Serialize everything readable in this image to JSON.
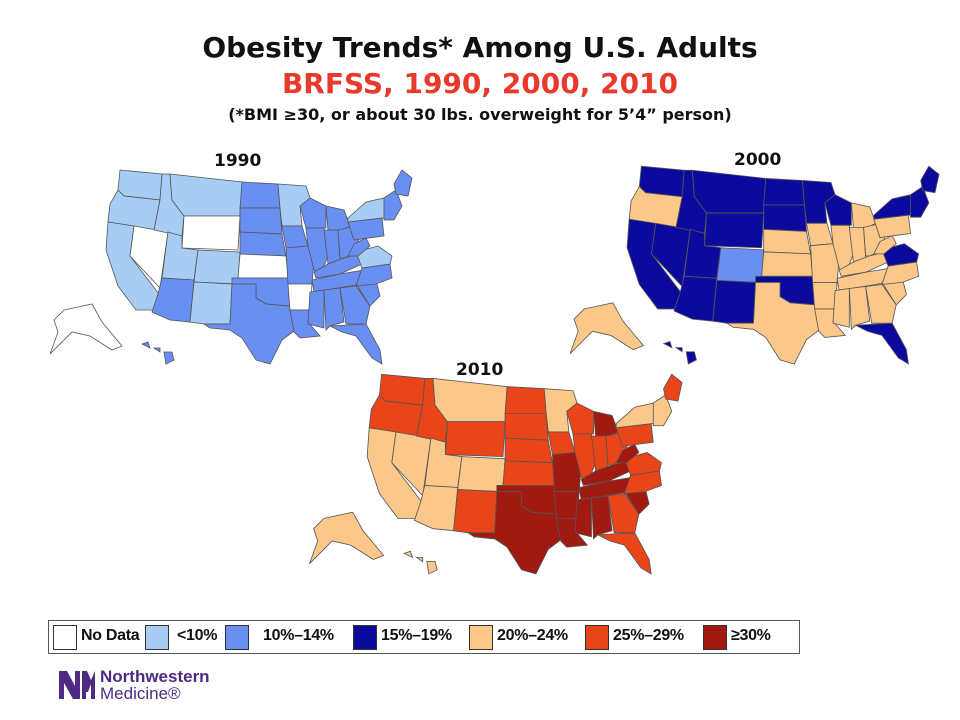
{
  "title": {
    "line1": "Obesity Trends* Among U.S. Adults",
    "line2": "BRFSS, 1990, 2000, 2010",
    "line3": "(*BMI ≥30, or about 30 lbs. overweight for 5’4” person)"
  },
  "colors": {
    "nodata": "#ffffff",
    "lt10": "#a8cdf5",
    "c10_14": "#6a8ff2",
    "c15_19": "#0c0a9c",
    "c20_24": "#fcc889",
    "c25_29": "#ea4519",
    "ge30": "#a01a12"
  },
  "maps": [
    {
      "id": "1990",
      "year_label": "1990",
      "base_category": "c10_14",
      "overrides": {
        "WA": "lt10",
        "OR": "lt10",
        "CA": "lt10",
        "NV": "nodata",
        "ID": "lt10",
        "MT": "lt10",
        "WY": "nodata",
        "UT": "lt10",
        "CO": "lt10",
        "AZ": "c10_14",
        "NM": "lt10",
        "ND": "c10_14",
        "SD": "c10_14",
        "NE": "c10_14",
        "KS": "nodata",
        "OK": "c10_14",
        "TX": "c10_14",
        "MN": "lt10",
        "IA": "c10_14",
        "MO": "c10_14",
        "AR": "nodata",
        "LA": "c10_14",
        "WI": "c10_14",
        "IL": "c10_14",
        "MI": "c10_14",
        "IN": "c10_14",
        "OH": "c10_14",
        "KY": "c10_14",
        "TN": "c10_14",
        "MS": "c10_14",
        "AL": "c10_14",
        "GA": "c10_14",
        "FL": "c10_14",
        "SC": "c10_14",
        "NC": "c10_14",
        "VA": "lt10",
        "WV": "c10_14",
        "PA": "c10_14",
        "NY": "lt10",
        "NE_STATES": "c10_14",
        "ME": "c10_14",
        "AK": "nodata",
        "HI": "c10_14"
      }
    },
    {
      "id": "2000",
      "year_label": "2000",
      "base_category": "c20_24",
      "overrides": {
        "WA": "c15_19",
        "OR": "c20_24",
        "CA": "c15_19",
        "NV": "c15_19",
        "ID": "c15_19",
        "MT": "c15_19",
        "WY": "c15_19",
        "UT": "c15_19",
        "CO": "c10_14",
        "AZ": "c15_19",
        "NM": "c15_19",
        "ND": "c15_19",
        "SD": "c15_19",
        "NE": "c20_24",
        "KS": "c20_24",
        "OK": "c15_19",
        "TX": "c20_24",
        "MN": "c15_19",
        "IA": "c20_24",
        "MO": "c20_24",
        "AR": "c20_24",
        "LA": "c20_24",
        "WI": "c15_19",
        "IL": "c20_24",
        "MI": "c20_24",
        "IN": "c20_24",
        "OH": "c20_24",
        "KY": "c20_24",
        "TN": "c20_24",
        "MS": "c20_24",
        "AL": "c20_24",
        "GA": "c20_24",
        "FL": "c15_19",
        "SC": "c20_24",
        "NC": "c20_24",
        "VA": "c15_19",
        "WV": "c20_24",
        "PA": "c20_24",
        "NY": "c15_19",
        "NE_STATES": "c15_19",
        "ME": "c15_19",
        "AK": "c20_24",
        "HI": "c15_19"
      }
    },
    {
      "id": "2010",
      "year_label": "2010",
      "base_category": "c25_29",
      "overrides": {
        "WA": "c25_29",
        "OR": "c25_29",
        "CA": "c20_24",
        "NV": "c20_24",
        "ID": "c25_29",
        "MT": "c20_24",
        "WY": "c25_29",
        "UT": "c20_24",
        "CO": "c20_24",
        "AZ": "c20_24",
        "NM": "c25_29",
        "ND": "c25_29",
        "SD": "c25_29",
        "NE": "c25_29",
        "KS": "c25_29",
        "OK": "ge30",
        "TX": "ge30",
        "MN": "c20_24",
        "IA": "c25_29",
        "MO": "ge30",
        "AR": "ge30",
        "LA": "ge30",
        "WI": "c25_29",
        "IL": "c25_29",
        "MI": "ge30",
        "IN": "c25_29",
        "OH": "c25_29",
        "KY": "ge30",
        "TN": "ge30",
        "MS": "ge30",
        "AL": "ge30",
        "GA": "c25_29",
        "FL": "c25_29",
        "SC": "ge30",
        "NC": "c25_29",
        "VA": "c25_29",
        "WV": "ge30",
        "PA": "c25_29",
        "NY": "c20_24",
        "NE_STATES": "c20_24",
        "ME": "c25_29",
        "AK": "c20_24",
        "HI": "c20_24"
      }
    }
  ],
  "legend": [
    {
      "label": "No Data",
      "category": "nodata"
    },
    {
      "label": "<10%",
      "category": "lt10"
    },
    {
      "label": "10%–14%",
      "category": "c10_14"
    },
    {
      "label": "15%–19%",
      "category": "c15_19"
    },
    {
      "label": "20%–24%",
      "category": "c20_24"
    },
    {
      "label": "25%–29%",
      "category": "c25_29"
    },
    {
      "label": "≥30%",
      "category": "ge30"
    }
  ],
  "logo": {
    "line1": "Northwestern",
    "line2": "Medicine®",
    "color": "#4e2a84"
  }
}
